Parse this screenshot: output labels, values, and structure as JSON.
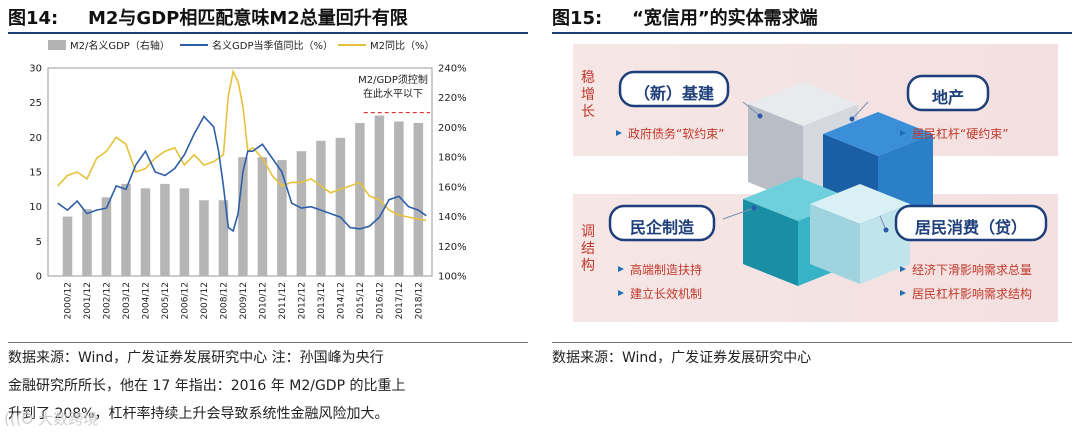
{
  "left": {
    "fig_number": "图14:",
    "fig_title": "M2与GDP相匹配意味M2总量回升有限",
    "source_lines": [
      "数据来源：Wind，广发证券发展研究中心    注：孙国峰为央行",
      "金融研究所所长，他在 17 年指出：2016 年 M2/GDP 的比重上",
      "升到了 208%，杠杆率持续上升会导致系统性金融风险加大。"
    ]
  },
  "right": {
    "fig_number": "图15:",
    "fig_title": "“宽信用”的实体需求端",
    "source_line": "数据来源：Wind，广发证券发展研究中心",
    "label_stable": "稳增长",
    "label_adjust": "调结构",
    "box_infra": "（新）基建",
    "box_property": "地产",
    "box_private": "民企制造",
    "box_consume": "居民消费（贷）",
    "bullet_infra": "政府债务“软约束”",
    "bullet_property": "居民杠杆“硬约束”",
    "bullets_private": [
      "高端制造扶持",
      "建立长效机制"
    ],
    "bullets_consume": [
      "经济下滑影响需求总量",
      "居民杠杆影响需求结构"
    ],
    "colors": {
      "red": "#c0392b",
      "cube_blue": "#1f6fb5",
      "cube_gray": "#c8ccd2",
      "cube_teal": "#1aa3b8",
      "cube_light": "#a8dce8"
    }
  },
  "watermark": "(((O 大数跨境",
  "chart_data": {
    "type": "bar+line",
    "legend": [
      "M2/名义GDP（右轴）",
      "名义GDP当季值同比（%）",
      "M2同比（%）"
    ],
    "annotation": [
      "M2/GDP须控制",
      "在此水平以下"
    ],
    "threshold_right": 210,
    "left_ylim": [
      0,
      30
    ],
    "left_ticks": [
      "0",
      "5",
      "10",
      "15",
      "20",
      "25",
      "30"
    ],
    "right_ylim": [
      100,
      240
    ],
    "right_ticks": [
      "100%",
      "120%",
      "140%",
      "160%",
      "180%",
      "200%",
      "220%",
      "240%"
    ],
    "x_labels": [
      "2000/12",
      "2001/12",
      "2002/12",
      "2003/12",
      "2004/12",
      "2005/12",
      "2006/12",
      "2007/12",
      "2008/12",
      "2009/12",
      "2010/12",
      "2011/12",
      "2012/12",
      "2013/12",
      "2014/12",
      "2015/12",
      "2016/12",
      "2017/12",
      "2018/12"
    ],
    "bars_right_axis": [
      140,
      145,
      153,
      162,
      159,
      162,
      159,
      151,
      151,
      180,
      180,
      178,
      184,
      191,
      193,
      203,
      208,
      204,
      203
    ],
    "gdp_yoy": {
      "t": [
        2000.0,
        2000.5,
        2001.0,
        2001.5,
        2002.0,
        2002.5,
        2003.0,
        2003.5,
        2004.0,
        2004.5,
        2005.0,
        2005.5,
        2006.0,
        2006.5,
        2007.0,
        2007.5,
        2008.0,
        2008.25,
        2008.5,
        2008.75,
        2009.0,
        2009.25,
        2009.5,
        2009.75,
        2010.0,
        2010.5,
        2011.0,
        2011.5,
        2012.0,
        2012.5,
        2013.0,
        2013.5,
        2014.0,
        2014.5,
        2015.0,
        2015.5,
        2016.0,
        2016.5,
        2017.0,
        2017.5,
        2018.0,
        2018.5,
        2018.9
      ],
      "v": [
        10.5,
        9.5,
        10.8,
        9.0,
        9.5,
        9.8,
        13.0,
        12.5,
        16.0,
        18.0,
        15.0,
        14.5,
        15.5,
        17.5,
        20.5,
        23.0,
        21.5,
        18.0,
        13.0,
        7.0,
        6.5,
        9.0,
        15.0,
        18.0,
        18.0,
        19.0,
        17.0,
        15.0,
        10.5,
        9.8,
        10.0,
        9.5,
        9.0,
        8.5,
        7.0,
        6.8,
        7.2,
        8.5,
        11.0,
        11.5,
        10.0,
        9.5,
        8.7
      ]
    },
    "m2_yoy": {
      "t": [
        2000.0,
        2000.5,
        2001.0,
        2001.5,
        2002.0,
        2002.5,
        2003.0,
        2003.5,
        2004.0,
        2004.5,
        2005.0,
        2005.5,
        2006.0,
        2006.5,
        2007.0,
        2007.5,
        2008.0,
        2008.5,
        2008.75,
        2009.0,
        2009.25,
        2009.5,
        2009.75,
        2010.0,
        2010.5,
        2011.0,
        2011.5,
        2012.0,
        2012.5,
        2013.0,
        2013.5,
        2014.0,
        2014.5,
        2015.0,
        2015.5,
        2016.0,
        2016.5,
        2017.0,
        2017.5,
        2018.0,
        2018.5,
        2018.9
      ],
      "v": [
        13.0,
        14.5,
        15.0,
        14.0,
        17.0,
        18.0,
        20.0,
        19.0,
        15.0,
        15.5,
        17.0,
        18.0,
        18.5,
        16.0,
        17.5,
        16.0,
        16.5,
        17.5,
        26.0,
        29.5,
        28.0,
        24.5,
        18.0,
        18.5,
        17.0,
        14.5,
        13.0,
        13.5,
        13.5,
        14.0,
        13.0,
        12.0,
        12.5,
        13.0,
        13.5,
        11.5,
        11.0,
        9.5,
        8.8,
        8.5,
        8.2,
        8.0
      ]
    }
  }
}
